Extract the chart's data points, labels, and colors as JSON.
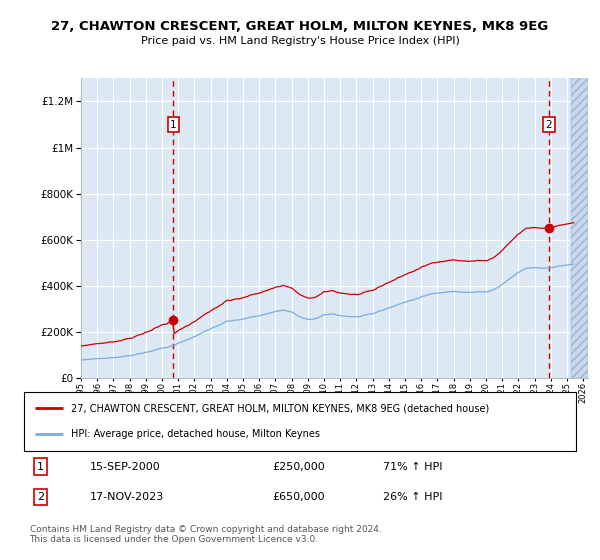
{
  "title": "27, CHAWTON CRESCENT, GREAT HOLM, MILTON KEYNES, MK8 9EG",
  "subtitle": "Price paid vs. HM Land Registry's House Price Index (HPI)",
  "legend_line1": "27, CHAWTON CRESCENT, GREAT HOLM, MILTON KEYNES, MK8 9EG (detached house)",
  "legend_line2": "HPI: Average price, detached house, Milton Keynes",
  "footer": "Contains HM Land Registry data © Crown copyright and database right 2024.\nThis data is licensed under the Open Government Licence v3.0.",
  "ann1_num": "1",
  "ann1_date": "15-SEP-2000",
  "ann1_price": "£250,000",
  "ann1_hpi": "71% ↑ HPI",
  "ann2_num": "2",
  "ann2_date": "17-NOV-2023",
  "ann2_price": "£650,000",
  "ann2_hpi": "26% ↑ HPI",
  "ylim": [
    0,
    1300000
  ],
  "xlim_start": 1995.0,
  "xlim_end": 2026.3,
  "background_color": "#dce9f5",
  "red_line_color": "#cc0000",
  "blue_line_color": "#7aacde",
  "grid_color": "#ffffff",
  "sale1_x": 2000.71,
  "sale2_x": 2023.88,
  "sale1_y": 250000,
  "sale2_y": 650000,
  "hpi_base_at_sale1": 0.465,
  "hpi_base_at_sale2": 1.0,
  "hatch_start": 2025.25
}
